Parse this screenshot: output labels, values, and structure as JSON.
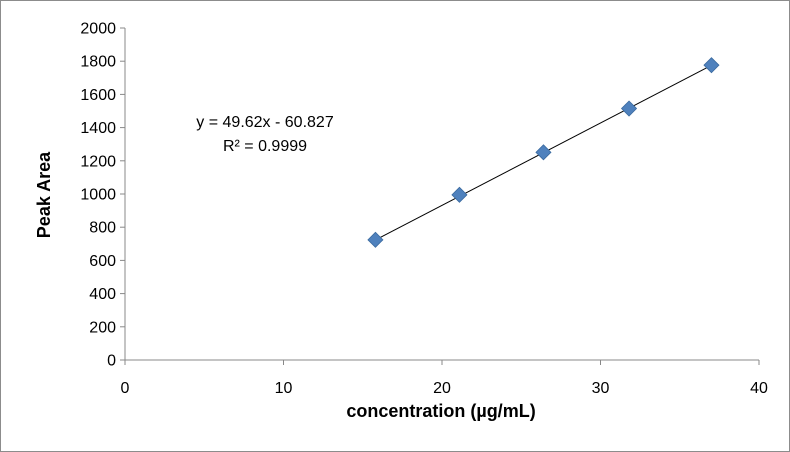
{
  "chart_data": {
    "type": "scatter",
    "title": "",
    "xlabel": "concentration (µg/mL)",
    "ylabel": "Peak Area",
    "xlim": [
      0,
      40
    ],
    "ylim": [
      0,
      2000
    ],
    "xticks": [
      0,
      10,
      20,
      30,
      40
    ],
    "yticks": [
      0,
      200,
      400,
      600,
      800,
      1000,
      1200,
      1400,
      1600,
      1800,
      2000
    ],
    "grid": false,
    "legend": "none",
    "series": [
      {
        "x": [
          15.8,
          21.1,
          26.4,
          31.8,
          37.0
        ],
        "y": [
          724,
          995,
          1251,
          1515,
          1776
        ],
        "marker": "diamond",
        "color": "#4f81bd"
      }
    ],
    "trendline": {
      "type": "linear",
      "slope": 49.62,
      "intercept": -60.827,
      "x_range": [
        15.8,
        37.0
      ],
      "color": "#000000"
    },
    "annotations": {
      "equation": "y = 49.62x - 60.827",
      "r_squared": "R² = 0.9999"
    }
  }
}
